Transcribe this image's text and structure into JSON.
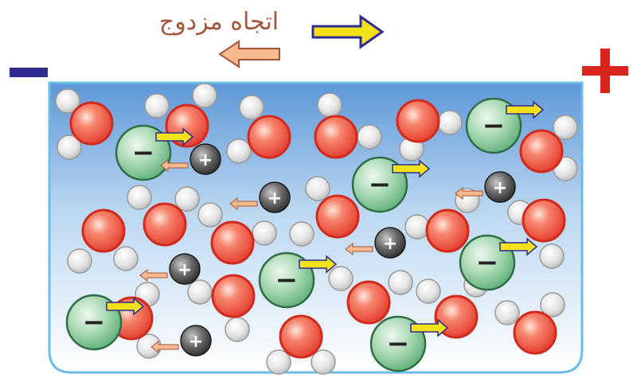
{
  "title": "اتجاه مزدوج",
  "symbols": {
    "negative_pole": "−",
    "positive_pole": "+",
    "anion": "−",
    "cation": "+"
  },
  "colors": {
    "title": "#a5553b",
    "negative_pole": "#2e2d8f",
    "positive_pole": "#d9261c",
    "oxygen": "#ef4a3a",
    "hydrogen": "#d0d0d0",
    "anion": "#7cc08f",
    "cation": "#3c3c3c",
    "yellow_arrow": "#f2e21a",
    "peach_arrow": "#f7b98e",
    "container_border": "#6bbde6",
    "water_top": "#5d97d8"
  },
  "icons": [
    "yellow-arrow-icon",
    "peach-arrow-icon",
    "minus-pole-icon",
    "plus-pole-icon"
  ]
}
